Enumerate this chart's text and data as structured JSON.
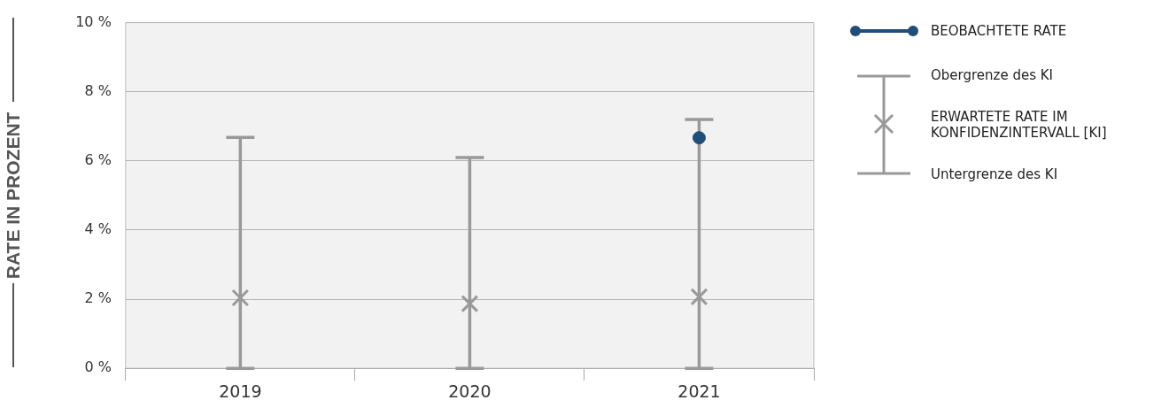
{
  "chart_data": {
    "type": "scatter",
    "ylabel": "RATE IN PROZENT",
    "categories": [
      "2019",
      "2020",
      "2021"
    ],
    "series": [
      {
        "name": "BEOBACHTETE RATE",
        "marker": "circle",
        "color": "#1f4e79",
        "values": [
          null,
          null,
          6.67
        ]
      },
      {
        "name": "ERWARTETE RATE IM KONFIDENZINTERVALL [KI]",
        "marker": "cross",
        "color": "#999999",
        "values": [
          2.04,
          1.87,
          2.07
        ],
        "errors": [
          [
            0,
            6.68
          ],
          [
            0,
            6.1
          ],
          [
            0,
            7.2
          ]
        ]
      }
    ],
    "ylim": [
      0,
      10
    ],
    "yticks": [
      {
        "value": 0,
        "label": "0 %"
      },
      {
        "value": 2,
        "label": "2 %"
      },
      {
        "value": 4,
        "label": "4 %"
      },
      {
        "value": 6,
        "label": "6 %"
      },
      {
        "value": 8,
        "label": "8 %"
      },
      {
        "value": 10,
        "label": "10 %"
      }
    ],
    "grid": "y",
    "legend": "right",
    "annotations": [
      "Obergrenze des KI",
      "Untergrenze des KI"
    ]
  }
}
